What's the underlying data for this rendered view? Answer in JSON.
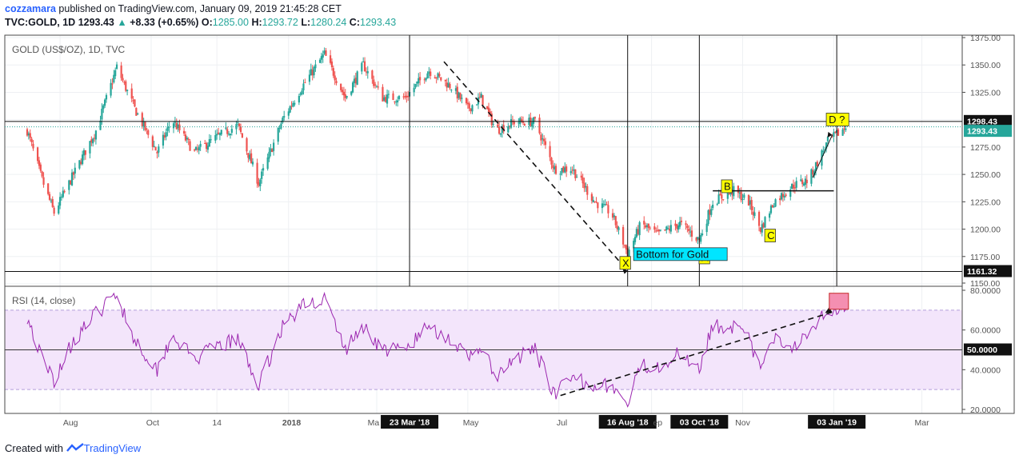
{
  "header": {
    "user": "cozzamara",
    "published_text": "published on TradingView.com, January 09, 2019 21:45:28 CET",
    "symbol": "TVC:GOLD, 1D",
    "last": "1293.43",
    "change": "+8.33 (+0.65%)",
    "o_label": "O:",
    "o_value": "1285.00",
    "h_label": "H:",
    "h_value": "1293.72",
    "l_label": "L:",
    "l_value": "1280.24",
    "c_label": "C:",
    "c_value": "1293.43"
  },
  "footer": {
    "created_with": "Created with",
    "brand": "TradingView"
  },
  "colors": {
    "up": "#26a69a",
    "down": "#ef5350",
    "rsi_line": "#9c27b0",
    "rsi_band": "#f3e5fb",
    "label_yellow": "#ffff00",
    "label_cyan": "#00e5ff"
  },
  "chart_data": [
    {
      "type": "candlestick",
      "title": "GOLD (US$/OZ), 1D, TVC",
      "x_ticks": [
        "Aug",
        "Oct",
        "14",
        "2018",
        "Ma",
        "23 Mar '18",
        "May",
        "Jul",
        "16 Aug '18",
        "ep",
        "03 Oct '18",
        "Nov",
        "03 Jan '19",
        "Mar"
      ],
      "y_ticks": [
        "1375.00",
        "1350.00",
        "1325.00",
        "1298.43",
        "1293.43",
        "1275.00",
        "1250.00",
        "1225.00",
        "1200.00",
        "1175.00",
        "1161.32",
        "1150.00"
      ],
      "ylim": [
        1150,
        1375
      ],
      "price_markers": {
        "high_line": "1298.43",
        "last": "1293.43",
        "low_line": "1161.32"
      },
      "vertical_markers": [
        "23 Mar '18",
        "16 Aug '18",
        "03 Oct '18",
        "03 Jan '19"
      ],
      "approx_close_path": [
        {
          "date": "2017-07-10",
          "close": 1290
        },
        {
          "date": "2017-07-20",
          "close": 1245
        },
        {
          "date": "2017-07-28",
          "close": 1215
        },
        {
          "date": "2017-08-10",
          "close": 1250
        },
        {
          "date": "2017-08-25",
          "close": 1290
        },
        {
          "date": "2017-09-08",
          "close": 1348
        },
        {
          "date": "2017-09-20",
          "close": 1310
        },
        {
          "date": "2017-10-05",
          "close": 1270
        },
        {
          "date": "2017-10-15",
          "close": 1300
        },
        {
          "date": "2017-10-30",
          "close": 1270
        },
        {
          "date": "2017-11-15",
          "close": 1285
        },
        {
          "date": "2017-11-28",
          "close": 1295
        },
        {
          "date": "2017-12-12",
          "close": 1242
        },
        {
          "date": "2017-12-28",
          "close": 1300
        },
        {
          "date": "2018-01-10",
          "close": 1330
        },
        {
          "date": "2018-01-25",
          "close": 1360
        },
        {
          "date": "2018-02-08",
          "close": 1320
        },
        {
          "date": "2018-02-20",
          "close": 1350
        },
        {
          "date": "2018-03-05",
          "close": 1320
        },
        {
          "date": "2018-03-20",
          "close": 1320
        },
        {
          "date": "2018-04-05",
          "close": 1345
        },
        {
          "date": "2018-04-20",
          "close": 1330
        },
        {
          "date": "2018-05-01",
          "close": 1310
        },
        {
          "date": "2018-05-10",
          "close": 1320
        },
        {
          "date": "2018-05-20",
          "close": 1290
        },
        {
          "date": "2018-06-01",
          "close": 1298
        },
        {
          "date": "2018-06-15",
          "close": 1298
        },
        {
          "date": "2018-06-28",
          "close": 1255
        },
        {
          "date": "2018-07-10",
          "close": 1255
        },
        {
          "date": "2018-07-25",
          "close": 1225
        },
        {
          "date": "2018-08-05",
          "close": 1215
        },
        {
          "date": "2018-08-16",
          "close": 1178
        },
        {
          "date": "2018-08-25",
          "close": 1205
        },
        {
          "date": "2018-09-05",
          "close": 1195
        },
        {
          "date": "2018-09-20",
          "close": 1205
        },
        {
          "date": "2018-10-03",
          "close": 1190
        },
        {
          "date": "2018-10-12",
          "close": 1225
        },
        {
          "date": "2018-10-26",
          "close": 1235
        },
        {
          "date": "2018-11-05",
          "close": 1225
        },
        {
          "date": "2018-11-13",
          "close": 1200
        },
        {
          "date": "2018-11-22",
          "close": 1225
        },
        {
          "date": "2018-12-05",
          "close": 1240
        },
        {
          "date": "2018-12-15",
          "close": 1245
        },
        {
          "date": "2018-12-28",
          "close": 1280
        },
        {
          "date": "2019-01-09",
          "close": 1293
        }
      ],
      "annotations": [
        "X",
        "A",
        "B",
        "C",
        "D ?",
        "Bottom for Gold"
      ],
      "horizontal_line_b": "1235"
    },
    {
      "type": "line",
      "title": "RSI (14, close)",
      "y_ticks": [
        "80.0000",
        "60.0000",
        "50.0000",
        "40.0000",
        "20.0000"
      ],
      "ylim": [
        20,
        80
      ],
      "band": [
        30,
        70
      ],
      "midline": 50,
      "approx_rsi_path": [
        {
          "date": "2017-07-10",
          "rsi": 67
        },
        {
          "date": "2017-07-20",
          "rsi": 45
        },
        {
          "date": "2017-07-28",
          "rsi": 35
        },
        {
          "date": "2017-08-10",
          "rsi": 55
        },
        {
          "date": "2017-08-25",
          "rsi": 68
        },
        {
          "date": "2017-09-08",
          "rsi": 78
        },
        {
          "date": "2017-09-20",
          "rsi": 55
        },
        {
          "date": "2017-10-05",
          "rsi": 40
        },
        {
          "date": "2017-10-15",
          "rsi": 58
        },
        {
          "date": "2017-10-30",
          "rsi": 45
        },
        {
          "date": "2017-11-15",
          "rsi": 52
        },
        {
          "date": "2017-11-28",
          "rsi": 55
        },
        {
          "date": "2017-12-12",
          "rsi": 32
        },
        {
          "date": "2017-12-28",
          "rsi": 62
        },
        {
          "date": "2018-01-10",
          "rsi": 72
        },
        {
          "date": "2018-01-25",
          "rsi": 76
        },
        {
          "date": "2018-02-08",
          "rsi": 50
        },
        {
          "date": "2018-02-20",
          "rsi": 62
        },
        {
          "date": "2018-03-05",
          "rsi": 50
        },
        {
          "date": "2018-03-20",
          "rsi": 50
        },
        {
          "date": "2018-04-05",
          "rsi": 62
        },
        {
          "date": "2018-04-20",
          "rsi": 55
        },
        {
          "date": "2018-05-01",
          "rsi": 45
        },
        {
          "date": "2018-05-10",
          "rsi": 52
        },
        {
          "date": "2018-05-20",
          "rsi": 35
        },
        {
          "date": "2018-06-01",
          "rsi": 45
        },
        {
          "date": "2018-06-15",
          "rsi": 50
        },
        {
          "date": "2018-06-28",
          "rsi": 28
        },
        {
          "date": "2018-07-10",
          "rsi": 35
        },
        {
          "date": "2018-07-25",
          "rsi": 33
        },
        {
          "date": "2018-08-05",
          "rsi": 32
        },
        {
          "date": "2018-08-16",
          "rsi": 22
        },
        {
          "date": "2018-08-25",
          "rsi": 42
        },
        {
          "date": "2018-09-05",
          "rsi": 42
        },
        {
          "date": "2018-09-20",
          "rsi": 48
        },
        {
          "date": "2018-10-03",
          "rsi": 42
        },
        {
          "date": "2018-10-12",
          "rsi": 62
        },
        {
          "date": "2018-10-26",
          "rsi": 62
        },
        {
          "date": "2018-11-05",
          "rsi": 55
        },
        {
          "date": "2018-11-13",
          "rsi": 40
        },
        {
          "date": "2018-11-22",
          "rsi": 55
        },
        {
          "date": "2018-12-05",
          "rsi": 52
        },
        {
          "date": "2018-12-15",
          "rsi": 60
        },
        {
          "date": "2018-12-28",
          "rsi": 70
        },
        {
          "date": "2019-01-09",
          "rsi": 72
        }
      ]
    }
  ]
}
